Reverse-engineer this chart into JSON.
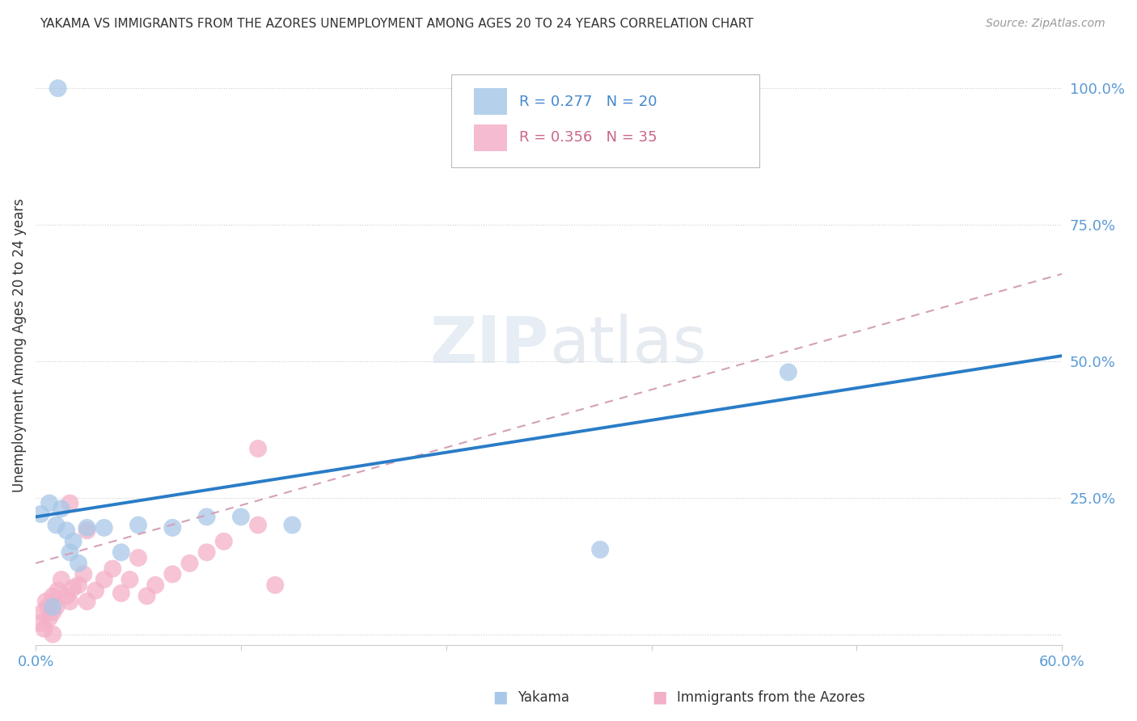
{
  "title": "YAKAMA VS IMMIGRANTS FROM THE AZORES UNEMPLOYMENT AMONG AGES 20 TO 24 YEARS CORRELATION CHART",
  "source": "Source: ZipAtlas.com",
  "ylabel": "Unemployment Among Ages 20 to 24 years",
  "xlim": [
    0.0,
    0.6
  ],
  "ylim": [
    -0.02,
    1.08
  ],
  "xticks": [
    0.0,
    0.12,
    0.24,
    0.36,
    0.48,
    0.6
  ],
  "xticklabels": [
    "0.0%",
    "",
    "",
    "",
    "",
    "60.0%"
  ],
  "yticks": [
    0.0,
    0.25,
    0.5,
    0.75,
    1.0
  ],
  "yticklabels": [
    "",
    "25.0%",
    "50.0%",
    "75.0%",
    "100.0%"
  ],
  "yakama_color": "#a8c8e8",
  "azores_color": "#f4b0c8",
  "yakama_line_color": "#2a7cc7",
  "azores_line_color": "#d4a0b8",
  "legend_R_yakama": "R = 0.277",
  "legend_N_yakama": "N = 20",
  "legend_R_azores": "R = 0.356",
  "legend_N_azores": "N = 35",
  "background_color": "#ffffff",
  "grid_color": "#cccccc",
  "yakama_x": [
    0.003,
    0.008,
    0.01,
    0.012,
    0.015,
    0.018,
    0.02,
    0.022,
    0.025,
    0.03,
    0.04,
    0.05,
    0.06,
    0.08,
    0.1,
    0.12,
    0.15,
    0.33,
    0.44,
    0.013
  ],
  "yakama_y": [
    0.22,
    0.24,
    0.05,
    0.2,
    0.23,
    0.19,
    0.15,
    0.17,
    0.13,
    0.195,
    0.195,
    0.15,
    0.2,
    0.195,
    0.215,
    0.215,
    0.2,
    0.155,
    0.48,
    1.0
  ],
  "azores_x": [
    0.003,
    0.004,
    0.005,
    0.006,
    0.007,
    0.008,
    0.01,
    0.01,
    0.01,
    0.012,
    0.013,
    0.015,
    0.018,
    0.02,
    0.022,
    0.025,
    0.028,
    0.03,
    0.035,
    0.04,
    0.045,
    0.05,
    0.055,
    0.06,
    0.065,
    0.07,
    0.08,
    0.09,
    0.1,
    0.11,
    0.13,
    0.14,
    0.02,
    0.03,
    0.13
  ],
  "azores_y": [
    0.02,
    0.04,
    0.01,
    0.06,
    0.05,
    0.03,
    0.0,
    0.04,
    0.07,
    0.05,
    0.08,
    0.1,
    0.07,
    0.06,
    0.085,
    0.09,
    0.11,
    0.06,
    0.08,
    0.1,
    0.12,
    0.075,
    0.1,
    0.14,
    0.07,
    0.09,
    0.11,
    0.13,
    0.15,
    0.17,
    0.2,
    0.09,
    0.24,
    0.19,
    0.34
  ],
  "yakama_trend_x": [
    0.0,
    0.6
  ],
  "yakama_trend_y": [
    0.215,
    0.51
  ],
  "azores_trend_x": [
    0.0,
    0.6
  ],
  "azores_trend_y": [
    0.13,
    0.66
  ]
}
